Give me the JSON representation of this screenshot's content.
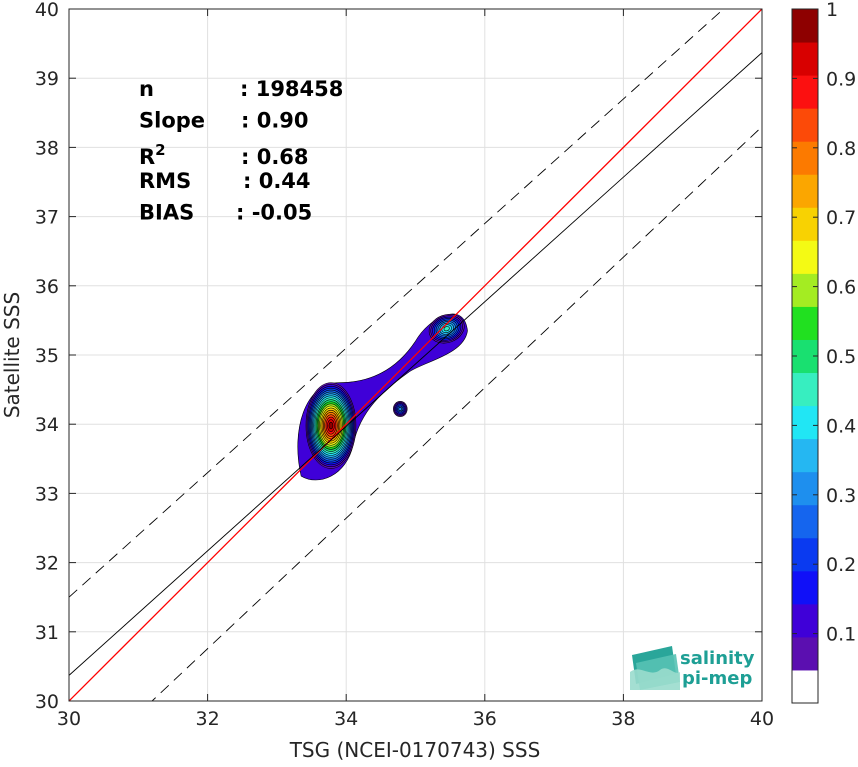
{
  "chart_data": {
    "type": "contour-scatter",
    "xlabel": "TSG (NCEI-0170743) SSS",
    "ylabel": "Satellite SSS",
    "xlim": [
      30,
      40
    ],
    "ylim": [
      30,
      40
    ],
    "xticks": [
      30,
      32,
      34,
      36,
      38,
      40
    ],
    "yticks": [
      30,
      31,
      32,
      33,
      34,
      35,
      36,
      37,
      38,
      39,
      40
    ],
    "grid": true,
    "lines": [
      {
        "name": "1:1",
        "color": "#ff0000",
        "style": "solid",
        "x": [
          30,
          40
        ],
        "y": [
          30,
          40
        ]
      },
      {
        "name": "fit",
        "color": "#000000",
        "style": "solid",
        "x": [
          30,
          40
        ],
        "y": [
          30.37,
          39.37
        ]
      },
      {
        "name": "upper",
        "color": "#000000",
        "style": "dashed",
        "x": [
          30,
          40
        ],
        "y": [
          31.5,
          40.5
        ]
      },
      {
        "name": "lower",
        "color": "#000000",
        "style": "dashed",
        "x": [
          30,
          40
        ],
        "y": [
          28.87,
          38.3
        ]
      }
    ],
    "stats": [
      {
        "label": "n",
        "value": ": 198458"
      },
      {
        "label": "Slope",
        "value": ": 0.90"
      },
      {
        "label": "R",
        "sup": "2",
        "value": ": 0.68"
      },
      {
        "label": "RMS",
        "value": ": 0.44"
      },
      {
        "label": "BIAS",
        "value": ": -0.05"
      }
    ],
    "density_peaks": [
      {
        "x": 33.8,
        "y": 33.95,
        "density": 1.0
      },
      {
        "x": 35.5,
        "y": 35.4,
        "density": 0.45
      },
      {
        "x": 34.8,
        "y": 34.2,
        "density": 0.3
      }
    ],
    "colorbar": {
      "ticks": [
        "0.1",
        "0.2",
        "0.3",
        "0.4",
        "0.5",
        "0.6",
        "0.7",
        "0.8",
        "0.9",
        "1"
      ],
      "colors": [
        "#ffffff",
        "#5b0fb0",
        "#3f00d8",
        "#1010f8",
        "#0a3af0",
        "#1565ee",
        "#1e8fee",
        "#25b7f2",
        "#21e6f4",
        "#37eec0",
        "#19e070",
        "#21e020",
        "#a4ec22",
        "#f4fa14",
        "#f8d202",
        "#fba600",
        "#fc7a00",
        "#fc4a08",
        "#fc1010",
        "#d80000",
        "#8e0000"
      ]
    },
    "logo": {
      "line1": "salinity",
      "line2": "pi-mep"
    }
  }
}
